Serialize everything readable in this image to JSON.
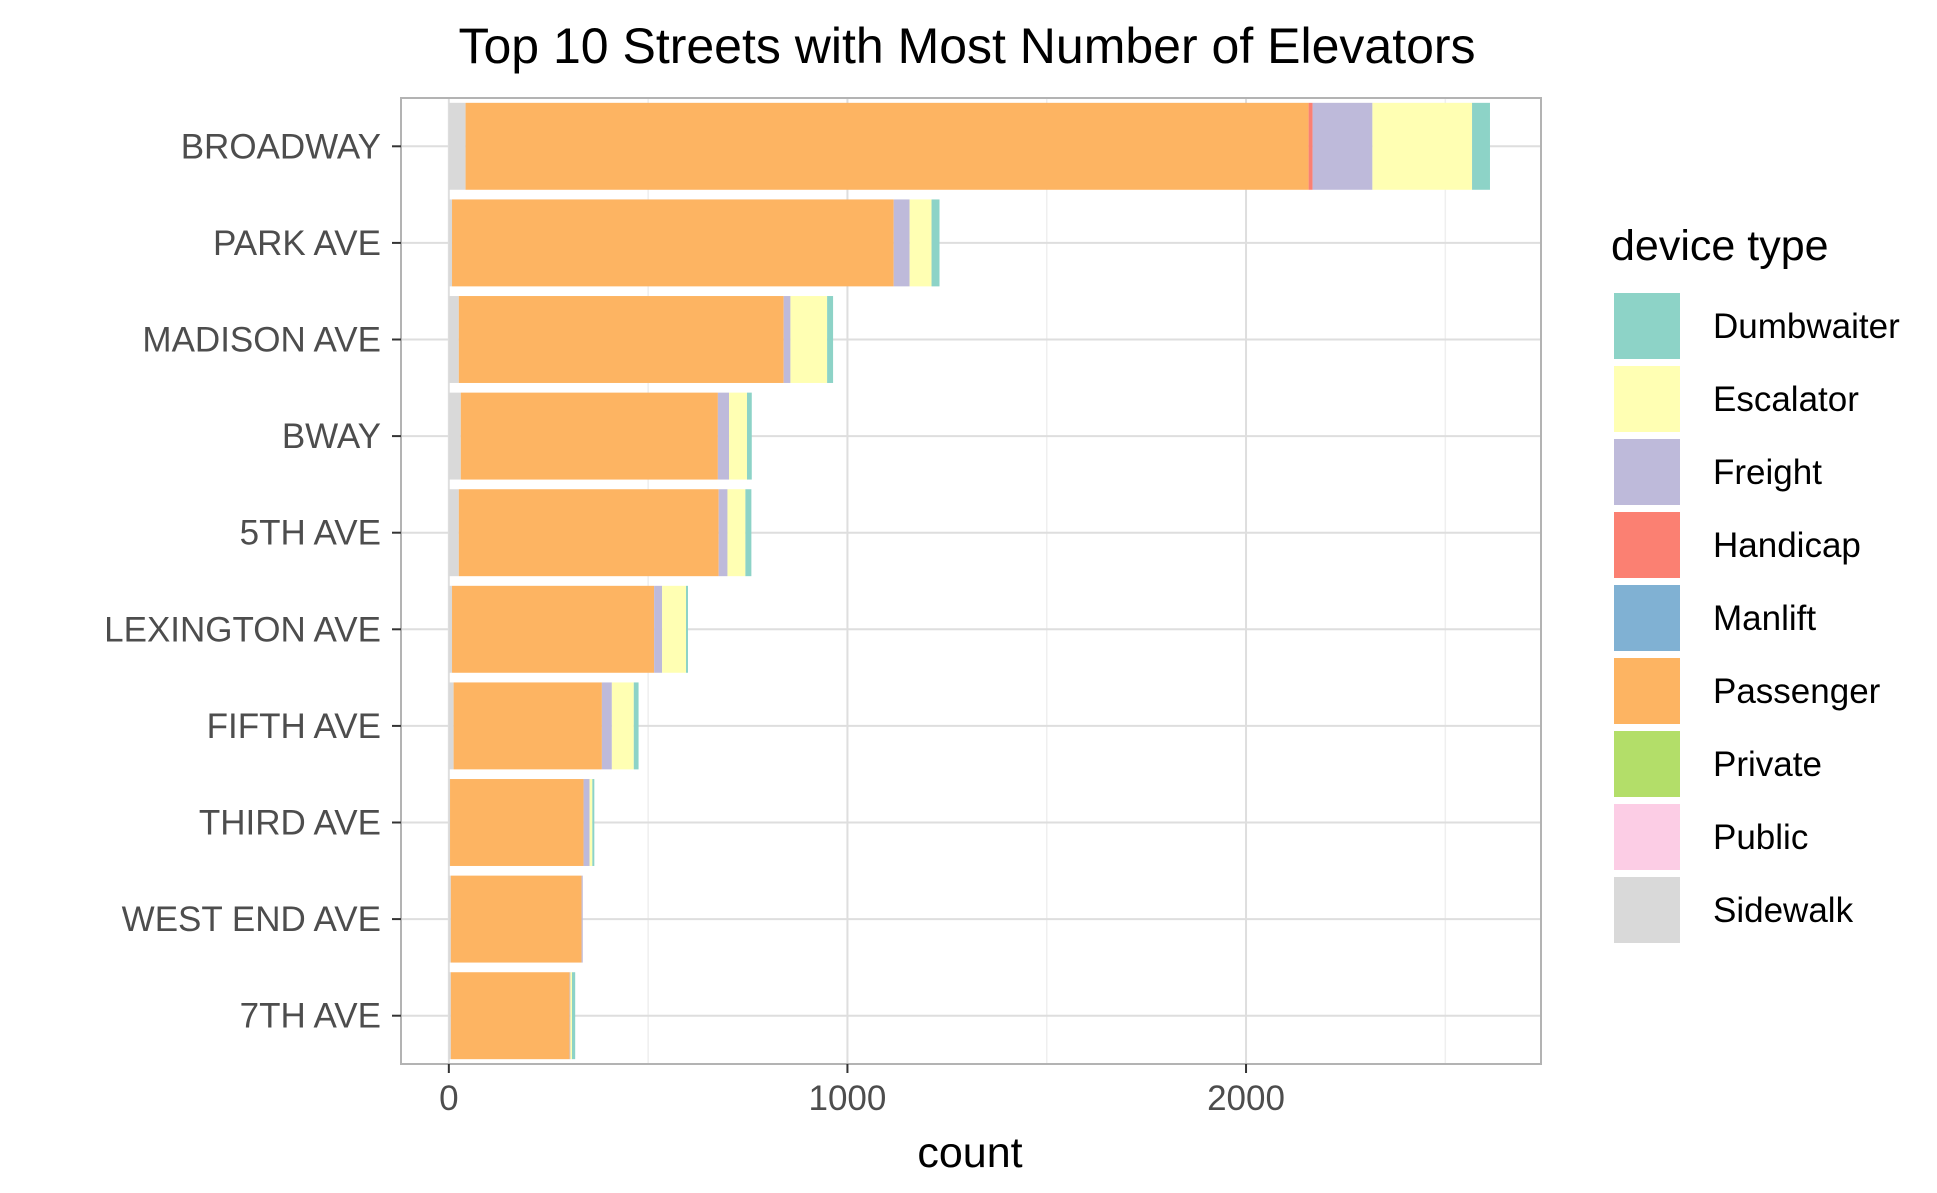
{
  "chart_data": {
    "type": "bar",
    "orientation": "horizontal",
    "stacked": true,
    "title": "Top 10 Streets with Most Number of Elevators",
    "xlabel": "count",
    "ylabel": "",
    "xlim": [
      -120,
      2740
    ],
    "xticks": [
      0,
      1000,
      2000
    ],
    "grid": true,
    "legend_position": "right",
    "legend_title": "device type",
    "categories": [
      "BROADWAY",
      "PARK AVE",
      "MADISON AVE",
      "BWAY",
      "5TH AVE",
      "LEXINGTON AVE",
      "FIFTH AVE",
      "THIRD AVE",
      "WEST END AVE",
      "7TH AVE"
    ],
    "series": [
      {
        "name": "Sidewalk",
        "color": "#D9D9D9",
        "values": [
          42,
          8,
          25,
          30,
          25,
          8,
          12,
          3,
          5,
          5
        ]
      },
      {
        "name": "Public",
        "color": "#FCCDE5",
        "values": [
          0,
          0,
          0,
          0,
          0,
          0,
          0,
          0,
          0,
          0
        ]
      },
      {
        "name": "Private",
        "color": "#B3DE69",
        "values": [
          0,
          0,
          0,
          0,
          0,
          0,
          0,
          0,
          0,
          0
        ]
      },
      {
        "name": "Passenger",
        "color": "#FDB462",
        "values": [
          2115,
          1108,
          815,
          645,
          652,
          507,
          372,
          335,
          328,
          298
        ]
      },
      {
        "name": "Manlift",
        "color": "#80B1D3",
        "values": [
          0,
          0,
          0,
          0,
          0,
          0,
          0,
          0,
          0,
          0
        ]
      },
      {
        "name": "Handicap",
        "color": "#FB8072",
        "values": [
          10,
          0,
          0,
          0,
          0,
          0,
          0,
          0,
          0,
          0
        ]
      },
      {
        "name": "Freight",
        "color": "#BEBADA",
        "values": [
          150,
          40,
          17,
          28,
          22,
          20,
          25,
          15,
          3,
          2
        ]
      },
      {
        "name": "Escalator",
        "color": "#FFFFB3",
        "values": [
          250,
          55,
          92,
          45,
          45,
          60,
          55,
          7,
          0,
          4
        ]
      },
      {
        "name": "Dumbwaiter",
        "color": "#8DD3C7",
        "values": [
          45,
          20,
          15,
          12,
          15,
          5,
          12,
          5,
          0,
          8
        ]
      }
    ],
    "legend_order": [
      "Dumbwaiter",
      "Escalator",
      "Freight",
      "Handicap",
      "Manlift",
      "Passenger",
      "Private",
      "Public",
      "Sidewalk"
    ]
  }
}
